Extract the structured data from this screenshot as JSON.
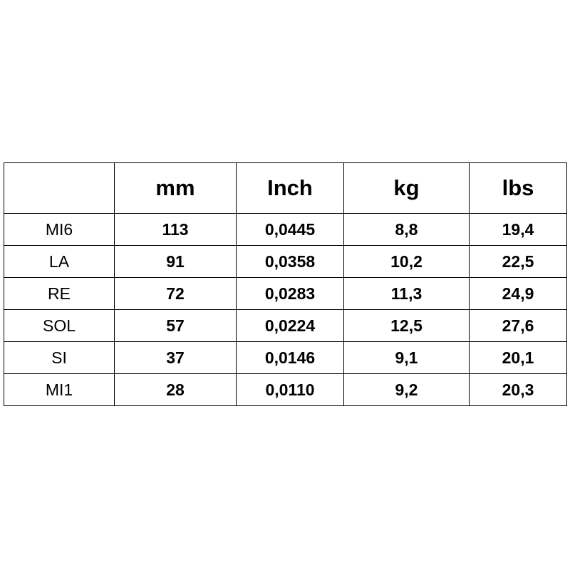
{
  "table": {
    "header": [
      "mm",
      "Inch",
      "kg",
      "lbs"
    ],
    "rows": [
      {
        "label": "MI6",
        "cells": [
          "113",
          "0,0445",
          "8,8",
          "19,4"
        ]
      },
      {
        "label": "LA",
        "cells": [
          "91",
          "0,0358",
          "10,2",
          "22,5"
        ]
      },
      {
        "label": "RE",
        "cells": [
          "72",
          "0,0283",
          "11,3",
          "24,9"
        ]
      },
      {
        "label": "SOL",
        "cells": [
          "57",
          "0,0224",
          "12,5",
          "27,6"
        ]
      },
      {
        "label": "SI",
        "cells": [
          "37",
          "0,0146",
          "9,1",
          "20,1"
        ]
      },
      {
        "label": "MI1",
        "cells": [
          "28",
          "0,0110",
          "9,2",
          "20,3"
        ]
      }
    ]
  }
}
